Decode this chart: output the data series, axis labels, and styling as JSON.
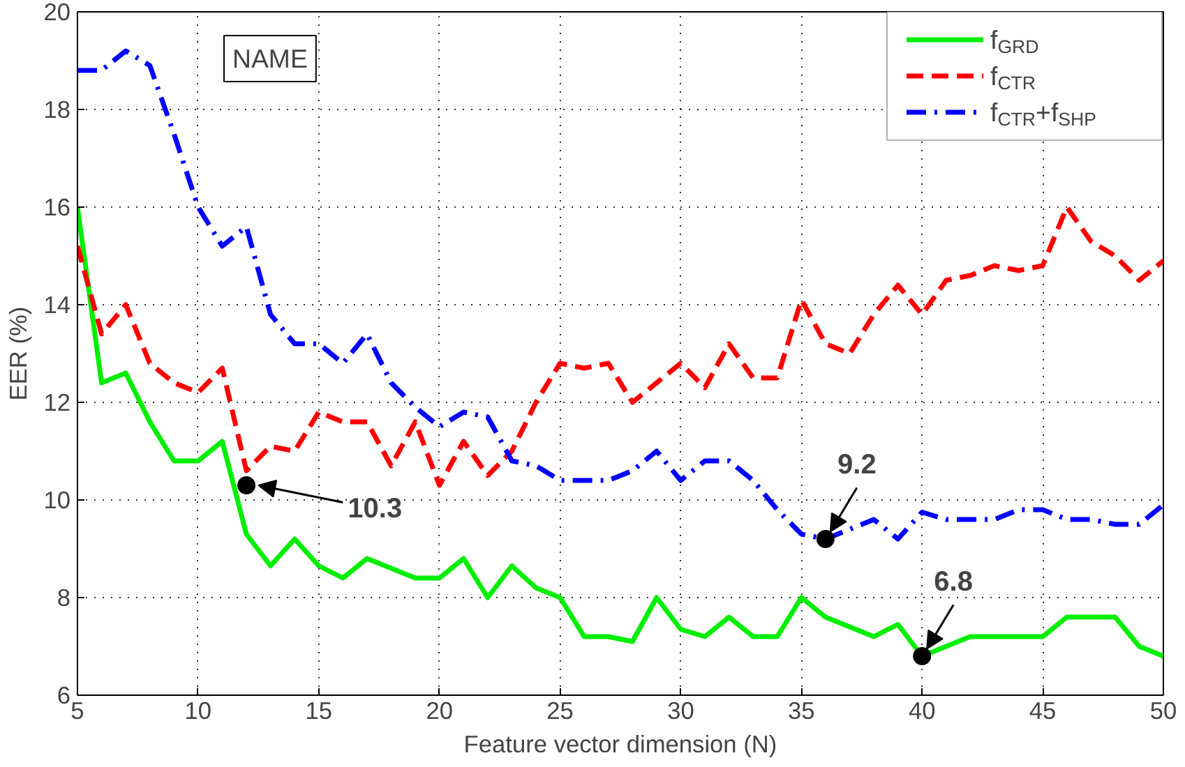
{
  "chart_data": {
    "type": "line",
    "xlabel": "Feature vector dimension (N)",
    "ylabel": "EER (%)",
    "x": [
      5,
      6,
      7,
      8,
      9,
      10,
      11,
      12,
      13,
      14,
      15,
      16,
      17,
      18,
      19,
      20,
      21,
      22,
      23,
      24,
      25,
      26,
      27,
      28,
      29,
      30,
      31,
      32,
      33,
      34,
      35,
      36,
      37,
      38,
      39,
      40,
      41,
      42,
      43,
      44,
      45,
      46,
      47,
      48,
      49,
      50
    ],
    "series": [
      {
        "name": "f$_{GRD}$",
        "color": "#00ee00",
        "line_style": "solid",
        "values": [
          16,
          12.4,
          12.6,
          11.6,
          10.8,
          10.8,
          11.2,
          9.3,
          8.65,
          9.2,
          8.65,
          8.4,
          8.8,
          8.6,
          8.4,
          8.4,
          8.8,
          8.0,
          8.65,
          8.2,
          8.0,
          7.2,
          7.2,
          7.1,
          8.0,
          7.35,
          7.2,
          7.6,
          7.2,
          7.2,
          8.0,
          7.6,
          7.4,
          7.2,
          7.45,
          6.8,
          7.0,
          7.2,
          7.2,
          7.2,
          7.2,
          7.6,
          7.6,
          7.6,
          7.0,
          6.8
        ]
      },
      {
        "name": "f$_{CTR}$",
        "color": "#ff0000",
        "line_style": "dashed",
        "values": [
          15.2,
          13.4,
          14.0,
          12.8,
          12.4,
          12.2,
          12.7,
          10.6,
          11.1,
          11.0,
          11.8,
          11.6,
          11.6,
          10.7,
          11.6,
          10.3,
          11.2,
          10.5,
          11.0,
          12.0,
          12.8,
          12.7,
          12.8,
          12.0,
          12.4,
          12.8,
          12.3,
          13.2,
          12.5,
          12.5,
          14.1,
          13.2,
          13.0,
          13.8,
          14.4,
          13.8,
          14.5,
          14.6,
          14.8,
          14.7,
          14.8,
          16.0,
          15.3,
          15.0,
          14.5,
          14.9
        ]
      },
      {
        "name": "f$_{CTR}$+f$_{SHP}$",
        "color": "#0000ff",
        "line_style": "dashdot",
        "values": [
          18.8,
          18.8,
          19.2,
          18.9,
          17.5,
          16.0,
          15.2,
          15.6,
          13.8,
          13.2,
          13.2,
          12.8,
          13.4,
          12.4,
          11.9,
          11.5,
          11.8,
          11.7,
          10.8,
          10.7,
          10.4,
          10.4,
          10.4,
          10.6,
          11.0,
          10.4,
          10.8,
          10.8,
          10.4,
          9.8,
          9.3,
          9.2,
          9.4,
          9.6,
          9.2,
          9.75,
          9.6,
          9.6,
          9.6,
          9.8,
          9.8,
          9.6,
          9.6,
          9.5,
          9.5,
          9.9
        ]
      }
    ],
    "xlim": [
      5,
      50
    ],
    "xticks": [
      5,
      10,
      15,
      20,
      25,
      30,
      35,
      40,
      45,
      50
    ],
    "ylim": [
      6,
      20
    ],
    "yticks": [
      6,
      8,
      10,
      12,
      14,
      16,
      18,
      20
    ],
    "grid": true,
    "legend": "top right",
    "annotations": [
      "NAME",
      {
        "text": "10.3",
        "x": 12,
        "y": 10.3
      },
      {
        "text": "9.2",
        "x": 36,
        "y": 9.2
      },
      {
        "text": "6.8",
        "x": 40,
        "y": 6.8
      }
    ]
  }
}
